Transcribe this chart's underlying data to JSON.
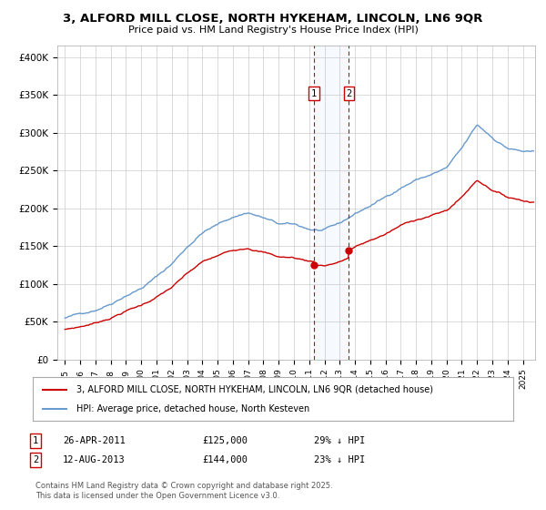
{
  "title_line1": "3, ALFORD MILL CLOSE, NORTH HYKEHAM, LINCOLN, LN6 9QR",
  "title_line2": "Price paid vs. HM Land Registry's House Price Index (HPI)",
  "ylabel_ticks": [
    "£0",
    "£50K",
    "£100K",
    "£150K",
    "£200K",
    "£250K",
    "£300K",
    "£350K",
    "£400K"
  ],
  "ytick_values": [
    0,
    50000,
    100000,
    150000,
    200000,
    250000,
    300000,
    350000,
    400000
  ],
  "xlim_start": 1994.5,
  "xlim_end": 2025.8,
  "ylim_min": 0,
  "ylim_max": 415000,
  "marker1_date": 2011.3,
  "marker2_date": 2013.6,
  "marker1_price": 125000,
  "marker2_price": 144000,
  "sale_color": "#cc0000",
  "hpi_color": "#6699cc",
  "legend_sale_label": "3, ALFORD MILL CLOSE, NORTH HYKEHAM, LINCOLN, LN6 9QR (detached house)",
  "legend_hpi_label": "HPI: Average price, detached house, North Kesteven",
  "background_color": "#ffffff",
  "grid_color": "#cccccc",
  "footer": "Contains HM Land Registry data © Crown copyright and database right 2025.\nThis data is licensed under the Open Government Licence v3.0."
}
